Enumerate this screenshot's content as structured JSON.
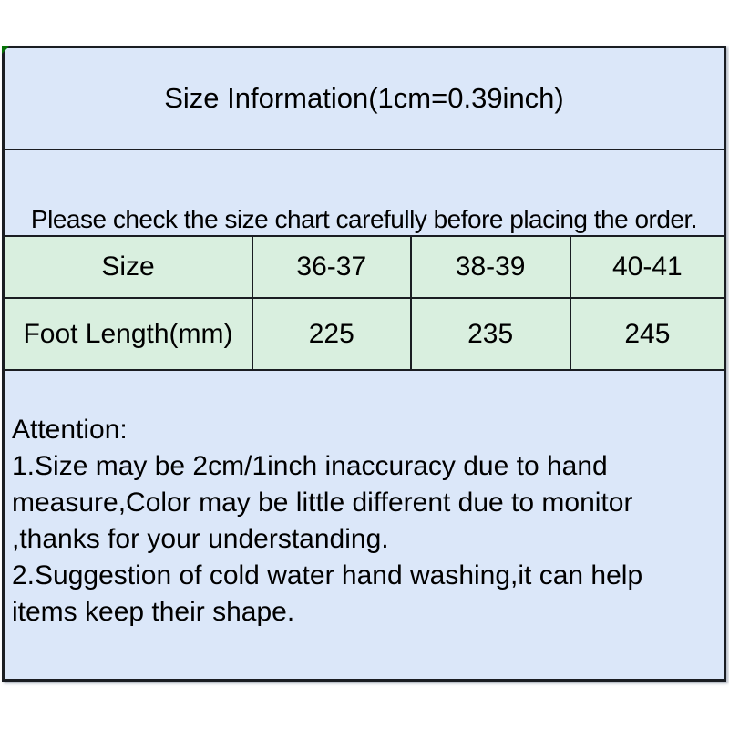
{
  "panel": {
    "title": "Size Information(1cm=0.39inch)",
    "notice": "Please check the size chart carefully before placing the order."
  },
  "size_table": {
    "type": "table",
    "header_row": [
      "Size",
      "36-37",
      "38-39",
      "40-41"
    ],
    "data_row": [
      "Foot Length(mm)",
      "225",
      "235",
      "245"
    ]
  },
  "attention": {
    "heading": "Attention:",
    "lines": [
      "1.Size may be 2cm/1inch inaccuracy due to hand",
      "measure,Color may be little different due to monitor",
      ",thanks for your understanding.",
      "2.Suggestion of cold water hand washing,it can help",
      "items keep their shape."
    ]
  },
  "colors": {
    "section_bg_blue": "#dbe7f9",
    "table_bg_green": "#d9efdf",
    "border": "#1a1d22",
    "corner_accent_green": "#067106",
    "text": "#000000",
    "page_bg": "#ffffff"
  }
}
